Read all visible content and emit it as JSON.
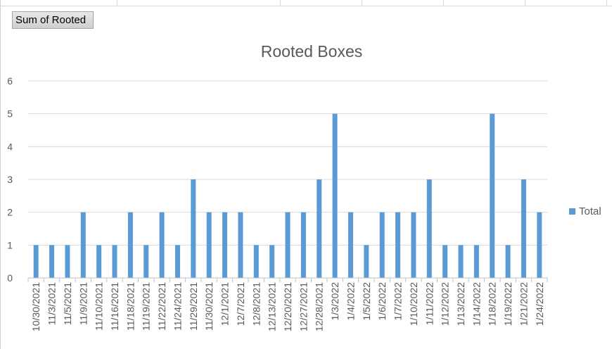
{
  "pivot_field_button": "Sum of Rooted",
  "colors": {
    "bar": "#5b9bd5",
    "grid": "#d9d9d9",
    "axis": "#bfbfbf",
    "text": "#595959"
  },
  "chart_data": {
    "type": "bar",
    "title": "Rooted Boxes",
    "xlabel": "",
    "ylabel": "",
    "ylim": [
      0,
      6
    ],
    "yticks": [
      0,
      1,
      2,
      3,
      4,
      5,
      6
    ],
    "grid": true,
    "legend_position": "right",
    "categories": [
      "10/30/2021",
      "11/3/2021",
      "11/5/2021",
      "11/9/2021",
      "11/10/2021",
      "11/16/2021",
      "11/18/2021",
      "11/19/2021",
      "11/22/2021",
      "11/24/2021",
      "11/29/2021",
      "11/30/2021",
      "12/1/2021",
      "12/7/2021",
      "12/8/2021",
      "12/13/2021",
      "12/20/2021",
      "12/27/2021",
      "12/28/2021",
      "1/3/2022",
      "1/4/2022",
      "1/5/2022",
      "1/6/2022",
      "1/7/2022",
      "1/10/2022",
      "1/11/2022",
      "1/12/2022",
      "1/13/2022",
      "1/14/2022",
      "1/18/2022",
      "1/19/2022",
      "1/21/2022",
      "1/24/2022"
    ],
    "series": [
      {
        "name": "Total",
        "values": [
          1,
          1,
          1,
          2,
          1,
          1,
          2,
          1,
          2,
          1,
          3,
          2,
          2,
          2,
          1,
          1,
          2,
          2,
          3,
          5,
          2,
          1,
          2,
          2,
          2,
          3,
          1,
          1,
          1,
          5,
          1,
          3,
          2
        ]
      }
    ]
  }
}
